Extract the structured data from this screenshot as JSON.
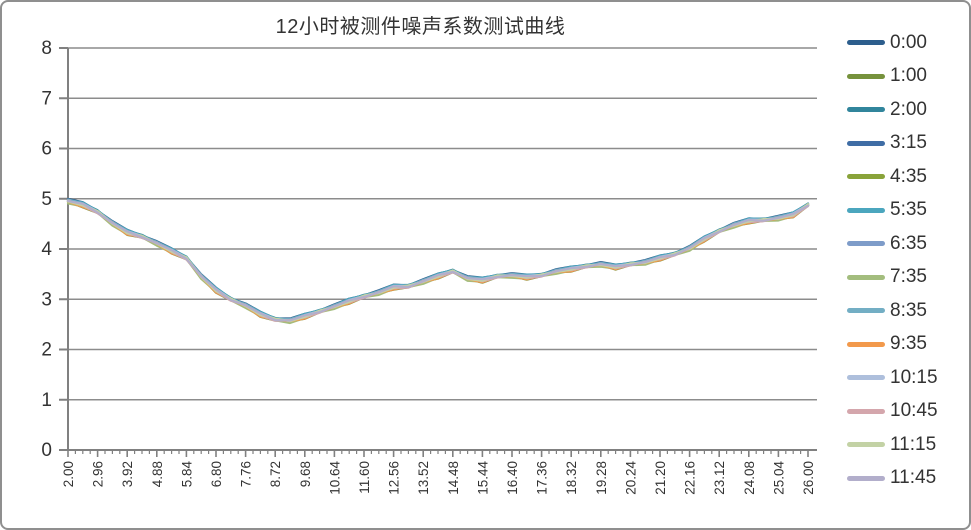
{
  "style": {
    "background": "#ffffff",
    "frame_border": "#8f8f8f",
    "gridline_color": "#8c8c8c",
    "axis_color": "#808080",
    "tick_color": "#808080",
    "label_color": "#333333"
  },
  "chart_data": {
    "type": "line",
    "title": "12小时被测件噪声系数测试曲线",
    "xlabel": "",
    "ylabel": "",
    "ylim": [
      0,
      8
    ],
    "ytick_step": 1,
    "y_tick_labels": [
      "0",
      "1",
      "2",
      "3",
      "4",
      "5",
      "6",
      "7",
      "8"
    ],
    "grid": "horizontal",
    "legend_position": "right",
    "x_range": [
      2.0,
      26.0
    ],
    "x_tick_labels": [
      "2.00",
      "2.96",
      "3.92",
      "4.88",
      "5.84",
      "6.80",
      "7.76",
      "8.72",
      "9.68",
      "10.64",
      "11.60",
      "12.56",
      "13.52",
      "14.48",
      "15.44",
      "16.40",
      "17.36",
      "18.32",
      "19.28",
      "20.24",
      "21.20",
      "22.16",
      "23.12",
      "24.08",
      "25.04",
      "26.00"
    ],
    "minor_ticks_per_interval": 4,
    "x": [
      2.0,
      2.48,
      2.96,
      3.44,
      3.92,
      4.4,
      4.88,
      5.36,
      5.84,
      6.32,
      6.8,
      7.28,
      7.76,
      8.24,
      8.72,
      9.2,
      9.68,
      10.16,
      10.64,
      11.12,
      11.6,
      12.08,
      12.56,
      13.04,
      13.52,
      14.0,
      14.48,
      14.96,
      15.44,
      15.92,
      16.4,
      16.88,
      17.36,
      17.84,
      18.32,
      18.8,
      19.28,
      19.76,
      20.24,
      20.72,
      21.2,
      21.68,
      22.16,
      22.64,
      23.12,
      23.6,
      24.08,
      24.56,
      25.04,
      25.52,
      26.0
    ],
    "base_values": [
      4.96,
      4.88,
      4.74,
      4.52,
      4.33,
      4.25,
      4.12,
      3.96,
      3.82,
      3.46,
      3.18,
      3.0,
      2.88,
      2.7,
      2.6,
      2.58,
      2.66,
      2.76,
      2.86,
      2.96,
      3.06,
      3.14,
      3.24,
      3.26,
      3.36,
      3.46,
      3.56,
      3.42,
      3.38,
      3.46,
      3.48,
      3.44,
      3.48,
      3.56,
      3.6,
      3.66,
      3.7,
      3.64,
      3.7,
      3.74,
      3.82,
      3.9,
      4.02,
      4.2,
      4.36,
      4.48,
      4.56,
      4.58,
      4.62,
      4.68,
      4.88
    ],
    "band_jitter": 0.02,
    "series": [
      {
        "name": "0:00",
        "color": "#2d5e8d",
        "offset": 0.035
      },
      {
        "name": "1:00",
        "color": "#76923c",
        "offset": -0.03
      },
      {
        "name": "2:00",
        "color": "#31859c",
        "offset": 0.022
      },
      {
        "name": "3:15",
        "color": "#3f6da5",
        "offset": 0.01
      },
      {
        "name": "4:35",
        "color": "#89a33a",
        "offset": -0.022
      },
      {
        "name": "5:35",
        "color": "#4ba6be",
        "offset": 0.028
      },
      {
        "name": "6:35",
        "color": "#7e9cc9",
        "offset": -0.012
      },
      {
        "name": "7:35",
        "color": "#a3bd7e",
        "offset": -0.034
      },
      {
        "name": "8:35",
        "color": "#73aec4",
        "offset": 0.016
      },
      {
        "name": "9:35",
        "color": "#f2994b",
        "offset": -0.024
      },
      {
        "name": "10:15",
        "color": "#aebfdc",
        "offset": 0.006
      },
      {
        "name": "10:45",
        "color": "#d4a6ac",
        "offset": -0.015
      },
      {
        "name": "11:15",
        "color": "#c3d2a5",
        "offset": -0.005
      },
      {
        "name": "11:45",
        "color": "#b2aecb",
        "offset": 0.0
      }
    ]
  }
}
